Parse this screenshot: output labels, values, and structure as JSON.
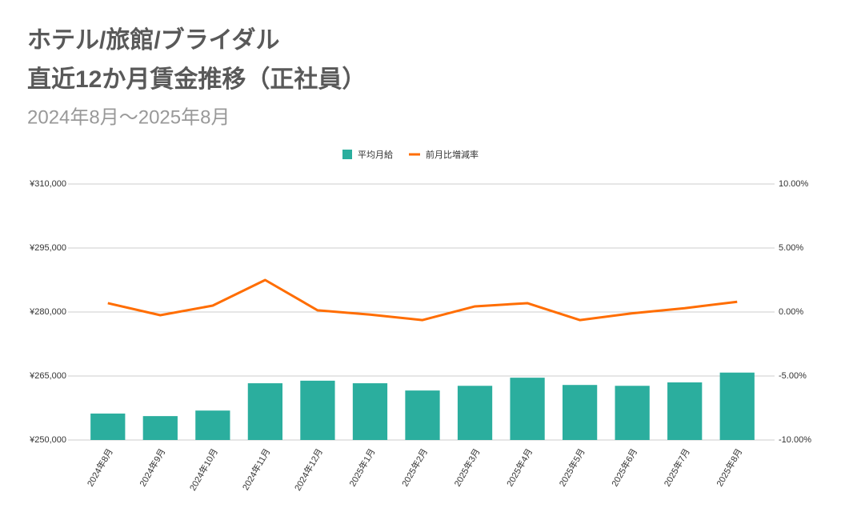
{
  "chart_data": {
    "type": "bar_line",
    "title": [
      "ホテル/旅館/ブライダル",
      "直近12か月賃金推移（正社員）"
    ],
    "subtitle": "2024年8月～2025年8月",
    "categories": [
      "2024年8月",
      "2024年9月",
      "2024年10月",
      "2024年11月",
      "2024年12月",
      "2025年1月",
      "2025年2月",
      "2025年3月",
      "2025年4月",
      "2025年5月",
      "2025年6月",
      "2025年7月",
      "2025年8月"
    ],
    "series": [
      {
        "name": "平均月給",
        "type": "bar",
        "color": "#2bae9e",
        "values": [
          256200,
          255600,
          256900,
          263300,
          263900,
          263300,
          261600,
          262700,
          264600,
          262900,
          262700,
          263500,
          265800
        ]
      },
      {
        "name": "前月比増減率",
        "type": "line",
        "axis": "y2",
        "color": "#ff6d01",
        "values": [
          0.69,
          -0.25,
          0.5,
          2.5,
          0.13,
          -0.2,
          -0.63,
          0.44,
          0.69,
          -0.63,
          -0.1,
          0.3,
          0.8
        ]
      }
    ],
    "ylim": [
      250000,
      310000
    ],
    "yticks": [
      {
        "value": 250000,
        "label": "¥250,000"
      },
      {
        "value": 265000,
        "label": "¥265,000"
      },
      {
        "value": 280000,
        "label": "¥280,000"
      },
      {
        "value": 295000,
        "label": "¥295,000"
      },
      {
        "value": 310000,
        "label": "¥310,000"
      }
    ],
    "y2lim": [
      -10,
      10
    ],
    "y2ticks": [
      {
        "value": -10,
        "label": "-10.00%"
      },
      {
        "value": -5,
        "label": "-5.00%"
      },
      {
        "value": 0,
        "label": "0.00%"
      },
      {
        "value": 5,
        "label": "5.00%"
      },
      {
        "value": 10,
        "label": "10.00%"
      }
    ],
    "grid": true,
    "legend": "top"
  }
}
